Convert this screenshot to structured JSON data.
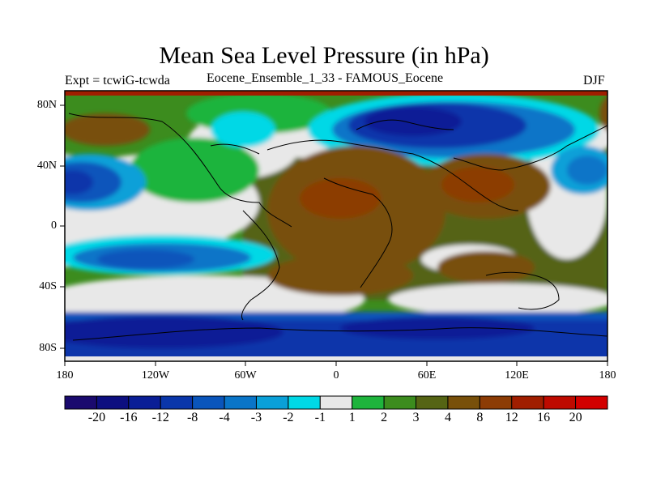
{
  "title": "Mean Sea Level Pressure (in hPa)",
  "subtitle_left": "Expt = tcwiG-tcwda",
  "subtitle_center": "Eocene_Ensemble_1_33 - FAMOUS_Eocene",
  "subtitle_right": "DJF",
  "lat_labels": [
    "80N",
    "40N",
    "0",
    "40S",
    "80S"
  ],
  "lon_labels": [
    "180",
    "120W",
    "60W",
    "0",
    "60E",
    "120E",
    "180"
  ],
  "colorbar": {
    "colors": [
      "#1a0a6e",
      "#0d0f80",
      "#0a1e96",
      "#0a36aa",
      "#0a55bb",
      "#0a75c8",
      "#0aa0d8",
      "#00d8e6",
      "#e8e8e8",
      "#1eb43c",
      "#3c8c1e",
      "#556414",
      "#78500a",
      "#8c3c05",
      "#a01e00",
      "#be0a00",
      "#d20000"
    ],
    "labels": [
      "-20",
      "-16",
      "-12",
      "-8",
      "-4",
      "-3",
      "-2",
      "-1",
      "1",
      "2",
      "3",
      "4",
      "8",
      "12",
      "16",
      "20"
    ]
  }
}
